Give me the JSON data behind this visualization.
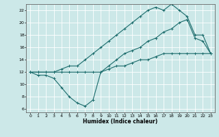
{
  "xlabel": "Humidex (Indice chaleur)",
  "xlim": [
    -0.5,
    23.5
  ],
  "ylim": [
    5.5,
    23
  ],
  "xticks": [
    0,
    1,
    2,
    3,
    4,
    5,
    6,
    7,
    8,
    9,
    10,
    11,
    12,
    13,
    14,
    15,
    16,
    17,
    18,
    19,
    20,
    21,
    22,
    23
  ],
  "yticks": [
    6,
    8,
    10,
    12,
    14,
    16,
    18,
    20,
    22
  ],
  "bg_color": "#cce8e8",
  "line_color": "#1a6b6b",
  "grid_color": "#ffffff",
  "line1_x": [
    0,
    1,
    2,
    3,
    4,
    5,
    6,
    7,
    8,
    9,
    10,
    11,
    12,
    13,
    14,
    15,
    16,
    17,
    18,
    19,
    20,
    21,
    22,
    23
  ],
  "line1_y": [
    12,
    11.5,
    11.5,
    11,
    9.5,
    8,
    7,
    6.5,
    7.5,
    12,
    13,
    14,
    15,
    15.5,
    16,
    17,
    17.5,
    18.5,
    19,
    20,
    20.5,
    17.5,
    17,
    15
  ],
  "line2_x": [
    0,
    1,
    2,
    3,
    4,
    5,
    6,
    7,
    8,
    9,
    10,
    11,
    12,
    13,
    14,
    15,
    16,
    17,
    18,
    19,
    20,
    21,
    22,
    23
  ],
  "line2_y": [
    12,
    12,
    12,
    12,
    12,
    12,
    12,
    12,
    12,
    12,
    12.5,
    13,
    13,
    13.5,
    14,
    14,
    14.5,
    15,
    15,
    15,
    15,
    15,
    15,
    15
  ],
  "line3_x": [
    0,
    1,
    2,
    3,
    4,
    5,
    6,
    7,
    8,
    9,
    10,
    11,
    12,
    13,
    14,
    15,
    16,
    17,
    18,
    19,
    20,
    21,
    22,
    23
  ],
  "line3_y": [
    12,
    12,
    12,
    12,
    12.5,
    13,
    13,
    14,
    15,
    16,
    17,
    18,
    19,
    20,
    21,
    22,
    22.5,
    22,
    23,
    22,
    21,
    18,
    18,
    15
  ]
}
